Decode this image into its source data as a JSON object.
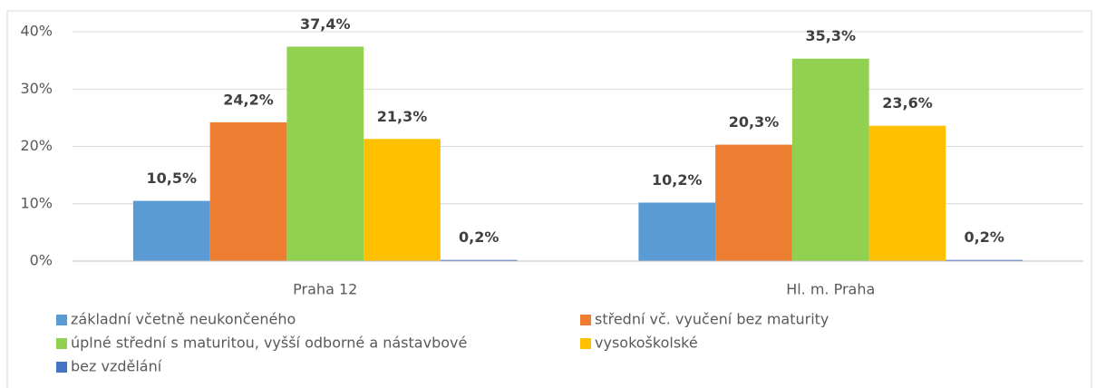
{
  "chart_data": {
    "type": "bar",
    "categories": [
      "Praha 12",
      "Hl. m. Praha"
    ],
    "series": [
      {
        "name": "základní včetně neukončeného",
        "color": "#5b9bd5",
        "values": [
          10.5,
          10.2
        ],
        "value_labels": [
          "10,5%",
          "10,2%"
        ]
      },
      {
        "name": "střední vč. vyučení bez maturity",
        "color": "#ed7d31",
        "values": [
          24.2,
          20.3
        ],
        "value_labels": [
          "24,2%",
          "20,3%"
        ]
      },
      {
        "name": "úplné střední s maturitou, vyšší odborné a nástavbové",
        "color": "#92d050",
        "values": [
          37.4,
          35.3
        ],
        "value_labels": [
          "37,4%",
          "35,3%"
        ]
      },
      {
        "name": "vysokoškolské",
        "color": "#ffc000",
        "values": [
          21.3,
          23.6
        ],
        "value_labels": [
          "21,3%",
          "23,6%"
        ]
      },
      {
        "name": "bez vzdělání",
        "color": "#4472c4",
        "values": [
          0.2,
          0.2
        ],
        "value_labels": [
          "0,2%",
          "0,2%"
        ]
      }
    ],
    "ylim": [
      0,
      40
    ],
    "yticks": [
      {
        "value": 0,
        "label": "0%"
      },
      {
        "value": 10,
        "label": "10%"
      },
      {
        "value": 20,
        "label": "20%"
      },
      {
        "value": 30,
        "label": "30%"
      },
      {
        "value": 40,
        "label": "40%"
      }
    ],
    "grid": true,
    "legend": "bottom"
  }
}
